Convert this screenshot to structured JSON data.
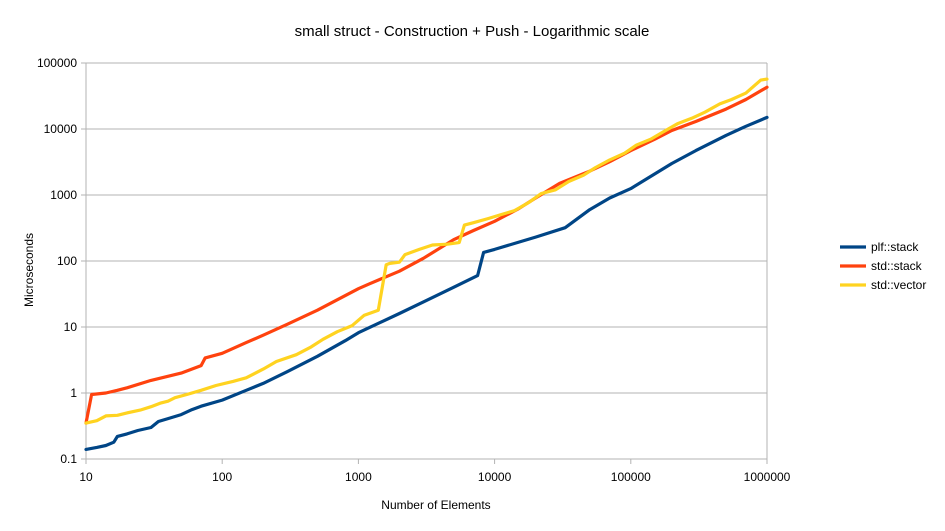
{
  "chart_data": {
    "type": "line",
    "title": "small struct - Construction + Push - Logarithmic scale",
    "xlabel": "Number of Elements",
    "ylabel": "Microseconds",
    "xscale": "log",
    "yscale": "log",
    "xlim": [
      10,
      1000000
    ],
    "ylim": [
      0.1,
      100000
    ],
    "xticks": [
      "10",
      "100",
      "1000",
      "10000",
      "100000",
      "1000000"
    ],
    "yticks": [
      "0.1",
      "1",
      "10",
      "100",
      "1000",
      "10000",
      "100000"
    ],
    "grid": "horizontal",
    "legend_position": "right",
    "series": [
      {
        "name": "plf::stack",
        "color": "#004586",
        "x": [
          10,
          12,
          14,
          16,
          17,
          20,
          24,
          30,
          34,
          40,
          50,
          60,
          70,
          100,
          150,
          200,
          300,
          500,
          800,
          1000,
          2000,
          3000,
          5000,
          7500,
          8300,
          10000,
          20000,
          33000,
          50000,
          70000,
          100000,
          200000,
          300000,
          500000,
          700000,
          1000000
        ],
        "y": [
          0.14,
          0.15,
          0.16,
          0.18,
          0.22,
          0.24,
          0.27,
          0.3,
          0.37,
          0.41,
          0.47,
          0.56,
          0.63,
          0.78,
          1.1,
          1.4,
          2.1,
          3.6,
          6.2,
          8.2,
          16,
          24,
          40,
          60,
          135,
          150,
          230,
          320,
          600,
          900,
          1250,
          3000,
          4700,
          8000,
          11000,
          15000
        ]
      },
      {
        "name": "std::stack",
        "color": "#ff420e",
        "x": [
          10,
          11,
          14,
          17,
          20,
          30,
          50,
          70,
          75,
          100,
          150,
          200,
          300,
          500,
          1000,
          1200,
          2000,
          3000,
          5000,
          7000,
          10000,
          15000,
          20000,
          30000,
          50000,
          70000,
          100000,
          150000,
          200000,
          300000,
          500000,
          700000,
          1000000
        ],
        "y": [
          0.35,
          0.95,
          1.0,
          1.1,
          1.2,
          1.55,
          2.0,
          2.6,
          3.4,
          4.0,
          5.8,
          7.5,
          11,
          18,
          38,
          45,
          70,
          110,
          210,
          290,
          400,
          620,
          900,
          1500,
          2300,
          3200,
          4700,
          7000,
          9500,
          13000,
          20000,
          28000,
          43000
        ]
      },
      {
        "name": "std::vector",
        "color": "#ffd320",
        "x": [
          10,
          12,
          14,
          17,
          20,
          25,
          30,
          35,
          40,
          45,
          55,
          70,
          90,
          120,
          150,
          200,
          250,
          350,
          450,
          550,
          700,
          900,
          1100,
          1400,
          1600,
          1700,
          2000,
          2200,
          2800,
          3500,
          4500,
          5500,
          6000,
          7000,
          9000,
          11000,
          14000,
          18000,
          22000,
          28000,
          35000,
          45000,
          55000,
          70000,
          90000,
          110000,
          140000,
          180000,
          220000,
          280000,
          350000,
          450000,
          550000,
          700000,
          900000,
          1000000
        ],
        "y": [
          0.35,
          0.38,
          0.45,
          0.46,
          0.5,
          0.55,
          0.62,
          0.7,
          0.75,
          0.85,
          0.95,
          1.1,
          1.3,
          1.5,
          1.7,
          2.3,
          3.0,
          3.8,
          5.0,
          6.5,
          8.5,
          10.5,
          15,
          18,
          88,
          92,
          96,
          125,
          150,
          175,
          180,
          190,
          350,
          380,
          440,
          500,
          580,
          780,
          1050,
          1200,
          1600,
          2000,
          2600,
          3400,
          4300,
          5700,
          7000,
          9500,
          12000,
          14500,
          18000,
          24000,
          28000,
          35000,
          55000,
          57000
        ]
      }
    ]
  }
}
